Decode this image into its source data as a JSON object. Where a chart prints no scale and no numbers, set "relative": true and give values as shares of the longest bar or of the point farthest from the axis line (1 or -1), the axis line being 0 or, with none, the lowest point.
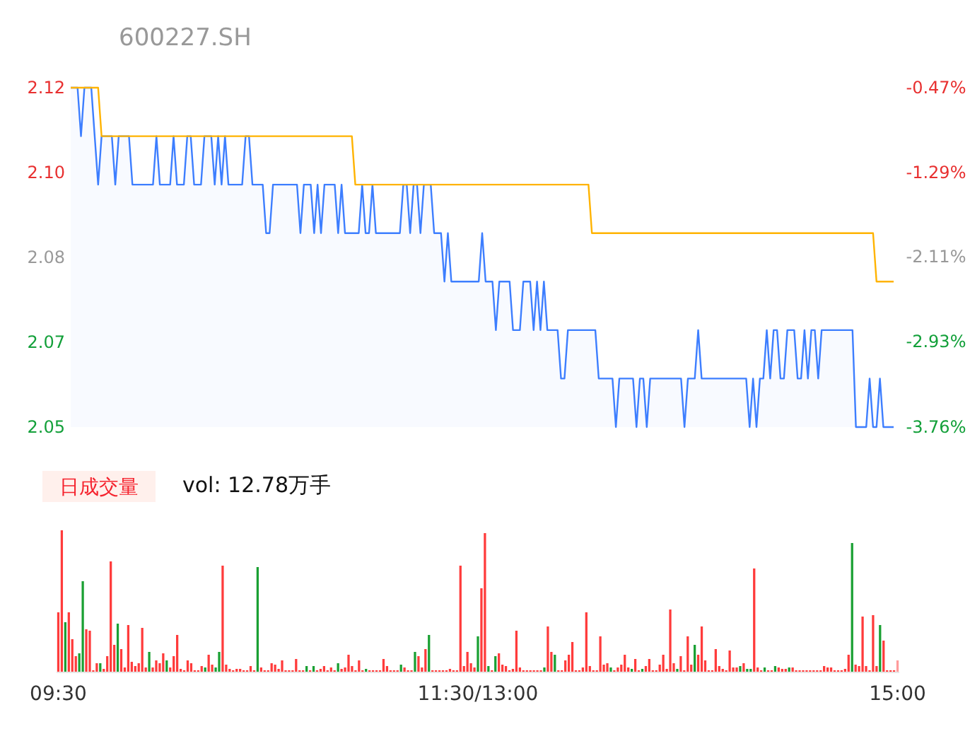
{
  "chart_data": [
    {
      "type": "line",
      "title": "600227.SH",
      "categories": [
        null,
        null,
        null,
        null,
        null,
        null,
        null,
        null,
        null,
        null,
        null,
        null,
        null,
        null,
        null,
        null,
        null,
        null,
        null,
        null,
        null,
        null,
        null,
        null,
        null,
        null,
        null,
        null,
        null,
        null,
        null,
        null,
        null,
        null,
        null,
        null,
        null,
        null,
        null,
        null,
        null,
        null,
        null,
        null,
        null,
        null,
        null,
        null,
        null,
        null,
        null,
        null,
        null,
        null,
        null,
        null,
        null,
        null,
        null,
        null,
        null,
        null,
        null,
        null,
        null,
        null,
        null,
        null,
        null,
        null,
        null,
        null,
        null,
        null,
        null,
        null,
        null,
        null,
        null,
        null,
        null,
        null,
        null,
        null,
        null,
        null,
        null,
        null,
        null,
        null,
        null,
        null,
        null,
        null,
        null,
        null,
        null,
        null,
        null,
        null,
        null,
        null,
        null,
        null,
        null,
        null,
        null,
        null,
        null,
        null,
        null,
        null,
        null,
        null,
        null,
        null,
        null,
        null,
        null,
        null,
        null,
        null,
        null,
        null,
        null,
        null,
        null,
        null,
        null,
        null,
        null,
        null,
        null,
        null,
        null,
        null,
        null,
        null,
        null,
        null,
        null,
        null,
        null,
        null,
        null,
        null,
        null,
        null,
        null,
        null,
        null,
        null,
        null,
        null,
        null,
        null,
        null,
        null,
        null,
        null,
        null,
        null,
        null,
        null,
        null,
        null,
        null,
        null,
        null,
        null,
        null,
        null,
        null,
        null,
        null,
        null,
        null,
        null,
        null,
        null,
        null,
        null,
        null,
        null,
        null,
        null,
        null,
        null,
        null,
        null,
        null,
        null,
        null,
        null,
        null,
        null,
        null,
        null,
        null,
        null,
        null,
        null,
        null,
        null,
        null,
        null,
        null,
        null,
        null,
        null,
        null,
        null,
        null,
        null,
        null,
        null,
        null,
        null,
        null,
        null,
        null,
        null,
        null,
        null,
        null,
        null,
        null,
        null,
        null,
        null,
        null,
        null,
        null,
        null,
        null,
        null,
        null,
        null,
        null,
        null,
        null
      ],
      "ylim": [
        2.05,
        2.12
      ],
      "yticks": [
        {
          "value": 2.05,
          "label": "2.05"
        },
        {
          "value": 2.0675,
          "label": "2.07"
        },
        {
          "value": 2.085,
          "label": "2.08"
        },
        {
          "value": 2.1025,
          "label": "2.10"
        },
        {
          "value": 2.12,
          "label": "2.12"
        }
      ],
      "y2lim": [
        -3.76,
        -0.47
      ],
      "y2ticks": [
        {
          "value": -3.76,
          "label": "-3.76%"
        },
        {
          "value": -2.93,
          "label": "-2.93%"
        },
        {
          "value": -2.11,
          "label": "-2.11%"
        },
        {
          "value": -1.29,
          "label": "-1.29%"
        },
        {
          "value": -0.47,
          "label": "-0.47%"
        }
      ],
      "tick_labels": "y",
      "series": [
        {
          "type": "area",
          "color": "#3d7eff",
          "values": [
            2.12,
            2.12,
            2.12,
            2.11,
            2.12,
            2.12,
            2.12,
            2.11,
            2.1,
            2.11,
            2.11,
            2.11,
            2.11,
            2.1,
            2.11,
            2.11,
            2.11,
            2.11,
            2.1,
            2.1,
            2.1,
            2.1,
            2.1,
            2.1,
            2.1,
            2.11,
            2.1,
            2.1,
            2.1,
            2.1,
            2.11,
            2.1,
            2.1,
            2.1,
            2.11,
            2.11,
            2.1,
            2.1,
            2.1,
            2.11,
            2.11,
            2.11,
            2.1,
            2.11,
            2.1,
            2.11,
            2.1,
            2.1,
            2.1,
            2.1,
            2.1,
            2.11,
            2.11,
            2.1,
            2.1,
            2.1,
            2.1,
            2.09,
            2.09,
            2.1,
            2.1,
            2.1,
            2.1,
            2.1,
            2.1,
            2.1,
            2.1,
            2.09,
            2.1,
            2.1,
            2.1,
            2.09,
            2.1,
            2.09,
            2.1,
            2.1,
            2.1,
            2.1,
            2.09,
            2.1,
            2.09,
            2.09,
            2.09,
            2.09,
            2.09,
            2.1,
            2.09,
            2.09,
            2.1,
            2.09,
            2.09,
            2.09,
            2.09,
            2.09,
            2.09,
            2.09,
            2.09,
            2.1,
            2.1,
            2.09,
            2.1,
            2.1,
            2.09,
            2.1,
            2.1,
            2.1,
            2.09,
            2.09,
            2.09,
            2.08,
            2.09,
            2.08,
            2.08,
            2.08,
            2.08,
            2.08,
            2.08,
            2.08,
            2.08,
            2.08,
            2.09,
            2.08,
            2.08,
            2.08,
            2.07,
            2.08,
            2.08,
            2.08,
            2.08,
            2.07,
            2.07,
            2.07,
            2.08,
            2.08,
            2.08,
            2.07,
            2.08,
            2.07,
            2.08,
            2.07,
            2.07,
            2.07,
            2.07,
            2.06,
            2.06,
            2.07,
            2.07,
            2.07,
            2.07,
            2.07,
            2.07,
            2.07,
            2.07,
            2.07,
            2.06,
            2.06,
            2.06,
            2.06,
            2.06,
            2.05,
            2.06,
            2.06,
            2.06,
            2.06,
            2.06,
            2.05,
            2.06,
            2.06,
            2.05,
            2.06,
            2.06,
            2.06,
            2.06,
            2.06,
            2.06,
            2.06,
            2.06,
            2.06,
            2.06,
            2.05,
            2.06,
            2.06,
            2.06,
            2.07,
            2.06,
            2.06,
            2.06,
            2.06,
            2.06,
            2.06,
            2.06,
            2.06,
            2.06,
            2.06,
            2.06,
            2.06,
            2.06,
            2.06,
            2.05,
            2.06,
            2.05,
            2.06,
            2.06,
            2.07,
            2.06,
            2.07,
            2.07,
            2.06,
            2.06,
            2.07,
            2.07,
            2.07,
            2.06,
            2.06,
            2.07,
            2.06,
            2.07,
            2.07,
            2.06,
            2.07,
            2.07,
            2.07,
            2.07,
            2.07,
            2.07,
            2.07,
            2.07,
            2.07,
            2.07,
            2.05,
            2.05,
            2.05,
            2.05,
            2.06,
            2.05,
            2.05,
            2.06,
            2.05,
            2.05,
            2.05,
            2.05
          ]
        },
        {
          "type": "line",
          "color": "#ffb300",
          "values": [
            2.12,
            2.12,
            2.12,
            2.12,
            2.12,
            2.12,
            2.12,
            2.12,
            2.12,
            2.11,
            2.11,
            2.11,
            2.11,
            2.11,
            2.11,
            2.11,
            2.11,
            2.11,
            2.11,
            2.11,
            2.11,
            2.11,
            2.11,
            2.11,
            2.11,
            2.11,
            2.11,
            2.11,
            2.11,
            2.11,
            2.11,
            2.11,
            2.11,
            2.11,
            2.11,
            2.11,
            2.11,
            2.11,
            2.11,
            2.11,
            2.11,
            2.11,
            2.11,
            2.11,
            2.11,
            2.11,
            2.11,
            2.11,
            2.11,
            2.11,
            2.11,
            2.11,
            2.11,
            2.11,
            2.11,
            2.11,
            2.11,
            2.11,
            2.11,
            2.11,
            2.11,
            2.11,
            2.11,
            2.11,
            2.11,
            2.11,
            2.11,
            2.11,
            2.11,
            2.11,
            2.11,
            2.11,
            2.11,
            2.11,
            2.11,
            2.11,
            2.11,
            2.11,
            2.11,
            2.11,
            2.11,
            2.11,
            2.11,
            2.1,
            2.1,
            2.1,
            2.1,
            2.1,
            2.1,
            2.1,
            2.1,
            2.1,
            2.1,
            2.1,
            2.1,
            2.1,
            2.1,
            2.1,
            2.1,
            2.1,
            2.1,
            2.1,
            2.1,
            2.1,
            2.1,
            2.1,
            2.1,
            2.1,
            2.1,
            2.1,
            2.1,
            2.1,
            2.1,
            2.1,
            2.1,
            2.1,
            2.1,
            2.1,
            2.1,
            2.1,
            2.1,
            2.1,
            2.1,
            2.1,
            2.1,
            2.1,
            2.1,
            2.1,
            2.1,
            2.1,
            2.1,
            2.1,
            2.1,
            2.1,
            2.1,
            2.1,
            2.1,
            2.1,
            2.1,
            2.1,
            2.1,
            2.1,
            2.1,
            2.1,
            2.1,
            2.1,
            2.1,
            2.1,
            2.1,
            2.1,
            2.1,
            2.1,
            2.09,
            2.09,
            2.09,
            2.09,
            2.09,
            2.09,
            2.09,
            2.09,
            2.09,
            2.09,
            2.09,
            2.09,
            2.09,
            2.09,
            2.09,
            2.09,
            2.09,
            2.09,
            2.09,
            2.09,
            2.09,
            2.09,
            2.09,
            2.09,
            2.09,
            2.09,
            2.09,
            2.09,
            2.09,
            2.09,
            2.09,
            2.09,
            2.09,
            2.09,
            2.09,
            2.09,
            2.09,
            2.09,
            2.09,
            2.09,
            2.09,
            2.09,
            2.09,
            2.09,
            2.09,
            2.09,
            2.09,
            2.09,
            2.09,
            2.09,
            2.09,
            2.09,
            2.09,
            2.09,
            2.09,
            2.09,
            2.09,
            2.09,
            2.09,
            2.09,
            2.09,
            2.09,
            2.09,
            2.09,
            2.09,
            2.09,
            2.09,
            2.09,
            2.09,
            2.09,
            2.09,
            2.09,
            2.09,
            2.09,
            2.09,
            2.09,
            2.09,
            2.09,
            2.09,
            2.09,
            2.09,
            2.09,
            2.09,
            2.08,
            2.08,
            2.08,
            2.08,
            2.08,
            2.08
          ]
        }
      ]
    },
    {
      "type": "bar",
      "relative": true,
      "title": "日成交量",
      "subtitle": "vol: 12.78万手",
      "categories": [
        "09:30",
        null,
        null,
        null,
        null,
        null,
        null,
        null,
        null,
        null,
        null,
        null,
        null,
        null,
        null,
        null,
        null,
        null,
        null,
        null,
        null,
        null,
        null,
        null,
        null,
        null,
        null,
        null,
        null,
        null,
        null,
        null,
        null,
        null,
        null,
        null,
        null,
        null,
        null,
        null,
        null,
        null,
        null,
        null,
        null,
        null,
        null,
        null,
        null,
        null,
        null,
        null,
        null,
        null,
        null,
        null,
        null,
        null,
        null,
        null,
        null,
        null,
        null,
        null,
        null,
        null,
        null,
        null,
        null,
        null,
        null,
        null,
        null,
        null,
        null,
        null,
        null,
        null,
        null,
        null,
        null,
        null,
        null,
        null,
        null,
        null,
        null,
        null,
        null,
        null,
        null,
        null,
        null,
        null,
        null,
        null,
        null,
        null,
        null,
        null,
        null,
        null,
        null,
        null,
        null,
        null,
        null,
        null,
        null,
        null,
        null,
        null,
        null,
        null,
        null,
        null,
        null,
        null,
        null,
        null,
        "11:30/13:00",
        null,
        null,
        null,
        null,
        null,
        null,
        null,
        null,
        null,
        null,
        null,
        null,
        null,
        null,
        null,
        null,
        null,
        null,
        null,
        null,
        null,
        null,
        null,
        null,
        null,
        null,
        null,
        null,
        null,
        null,
        null,
        null,
        null,
        null,
        null,
        null,
        null,
        null,
        null,
        null,
        null,
        null,
        null,
        null,
        null,
        null,
        null,
        null,
        null,
        null,
        null,
        null,
        null,
        null,
        null,
        null,
        null,
        null,
        null,
        null,
        null,
        null,
        null,
        null,
        null,
        null,
        null,
        null,
        null,
        null,
        null,
        null,
        null,
        null,
        null,
        null,
        null,
        null,
        null,
        null,
        null,
        null,
        null,
        null,
        null,
        null,
        null,
        null,
        null,
        null,
        null,
        null,
        null,
        null,
        null,
        null,
        null,
        null,
        null,
        null,
        null,
        null,
        null,
        null,
        null,
        null,
        null,
        null,
        null,
        null,
        null,
        null,
        null,
        null,
        null,
        null,
        null,
        null,
        null,
        "15:00"
      ],
      "values": [
        0.42,
        1,
        0.35,
        0.42,
        0.23,
        0.11,
        0.13,
        0.64,
        0.3,
        0.29,
        0.01,
        0.06,
        0.06,
        0.02,
        0.11,
        0.78,
        0.19,
        0.34,
        0.16,
        0.03,
        0.33,
        0.07,
        0.04,
        0.06,
        0.31,
        0.03,
        0.14,
        0.03,
        0.08,
        0.06,
        0.13,
        0.08,
        0.03,
        0.11,
        0.26,
        0.02,
        0.01,
        0.08,
        0.06,
        0.01,
        0.01,
        0.04,
        0.03,
        0.12,
        0.05,
        0.03,
        0.14,
        0.75,
        0.05,
        0.02,
        0.01,
        0.02,
        0.02,
        0.01,
        0.01,
        0.04,
        0.01,
        0.74,
        0.03,
        0.01,
        0.01,
        0.06,
        0.05,
        0.02,
        0.08,
        0.01,
        0.01,
        0.01,
        0.09,
        0.01,
        0.01,
        0.04,
        0.01,
        0.04,
        0.01,
        0.02,
        0.04,
        0.01,
        0.03,
        0.01,
        0.06,
        0.02,
        0.03,
        0.12,
        0.04,
        0.01,
        0.08,
        0.01,
        0.02,
        0.01,
        0.01,
        0.01,
        0.01,
        0.09,
        0.04,
        0.01,
        0.01,
        0.01,
        0.05,
        0.03,
        0.01,
        0.01,
        0.14,
        0.11,
        0.03,
        0.16,
        0.26,
        0.01,
        0.01,
        0.01,
        0.01,
        0.01,
        0.02,
        0.01,
        0.01,
        0.75,
        0.04,
        0.14,
        0.06,
        0.03,
        0.25,
        0.59,
        0.98,
        0.04,
        0.01,
        0.11,
        0.13,
        0.05,
        0.04,
        0.01,
        0.02,
        0.29,
        0.03,
        0.01,
        0.01,
        0.01,
        0.01,
        0.01,
        0.01,
        0.03,
        0.32,
        0.14,
        0.12,
        0.01,
        0.01,
        0.08,
        0.12,
        0.21,
        0.01,
        0.01,
        0.03,
        0.42,
        0.04,
        0.01,
        0.01,
        0.25,
        0.05,
        0.06,
        0.03,
        0.01,
        0.03,
        0.05,
        0.12,
        0.03,
        0.02,
        0.09,
        0.01,
        0.02,
        0.04,
        0.09,
        0.01,
        0.01,
        0.05,
        0.12,
        0.02,
        0.44,
        0.06,
        0.02,
        0.11,
        0.01,
        0.25,
        0.05,
        0.19,
        0.12,
        0.32,
        0.08,
        0.01,
        0.01,
        0.16,
        0.04,
        0.02,
        0.01,
        0.15,
        0.03,
        0.03,
        0.04,
        0.06,
        0.02,
        0.02,
        0.73,
        0.03,
        0.01,
        0.03,
        0.01,
        0.01,
        0.04,
        0.03,
        0.02,
        0.02,
        0.03,
        0.03,
        0.01,
        0.01,
        0.01,
        0.01,
        0.01,
        0.01,
        0.01,
        0.01,
        0.04,
        0.03,
        0.03,
        0.01,
        0.01,
        0.01,
        0.02,
        0.12,
        0.91,
        0.05,
        0.04,
        0.39,
        0.04,
        0.01,
        0.4,
        0.04,
        0.33,
        0.22,
        0.01,
        0.01,
        0.01,
        0.08
      ],
      "colors": [
        "#ff3b3b",
        "#ff3b3b",
        "#1aa033",
        "#ff3b3b",
        "#ff3b3b",
        "#ff3b3b",
        "#1aa033",
        "#1aa033",
        "#ff3b3b",
        "#ff3b3b",
        "#ff3b3b",
        "#ff3b3b",
        "#1aa033",
        "#ff3b3b",
        "#ff3b3b",
        "#ff3b3b",
        "#ff3b3b",
        "#1aa033",
        "#ff3b3b",
        "#ff3b3b",
        "#ff3b3b",
        "#ff3b3b",
        "#ff3b3b",
        "#ff3b3b",
        "#ff3b3b",
        "#ff3b3b",
        "#1aa033",
        "#ff3b3b",
        "#ff3b3b",
        "#ff3b3b",
        "#ff3b3b",
        "#1aa033",
        "#ff3b3b",
        "#ff3b3b",
        "#ff3b3b",
        "#ff3b3b",
        "#ff3b3b",
        "#ff3b3b",
        "#ff3b3b",
        "#ff3b3b",
        "#ff3b3b",
        "#ff3b3b",
        "#1aa033",
        "#ff3b3b",
        "#ff3b3b",
        "#1aa033",
        "#1aa033",
        "#ff3b3b",
        "#ff3b3b",
        "#ff3b3b",
        "#ff3b3b",
        "#ff3b3b",
        "#ff3b3b",
        "#ff3b3b",
        "#ff3b3b",
        "#ff3b3b",
        "#ff3b3b",
        "#1aa033",
        "#ff3b3b",
        "#ff3b3b",
        "#ff3b3b",
        "#ff3b3b",
        "#ff3b3b",
        "#ff3b3b",
        "#ff3b3b",
        "#ff3b3b",
        "#ff3b3b",
        "#ff3b3b",
        "#ff3b3b",
        "#ff3b3b",
        "#ff3b3b",
        "#1aa033",
        "#ff3b3b",
        "#1aa033",
        "#ff3b3b",
        "#ff3b3b",
        "#ff3b3b",
        "#ff3b3b",
        "#ff3b3b",
        "#ff3b3b",
        "#1aa033",
        "#ff3b3b",
        "#ff3b3b",
        "#ff3b3b",
        "#ff3b3b",
        "#ff3b3b",
        "#ff3b3b",
        "#ff3b3b",
        "#1aa033",
        "#ff3b3b",
        "#ff3b3b",
        "#ff3b3b",
        "#ff3b3b",
        "#ff3b3b",
        "#ff3b3b",
        "#ff3b3b",
        "#ff3b3b",
        "#ff3b3b",
        "#1aa033",
        "#ff3b3b",
        "#ff3b3b",
        "#ff3b3b",
        "#1aa033",
        "#ff3b3b",
        "#ff3b3b",
        "#ff3b3b",
        "#1aa033",
        "#ff3b3b",
        "#ff3b3b",
        "#ff3b3b",
        "#ff3b3b",
        "#ff3b3b",
        "#ff3b3b",
        "#ff3b3b",
        "#ff3b3b",
        "#ff3b3b",
        "#ff3b3b",
        "#ff3b3b",
        "#ff3b3b",
        "#ff3b3b",
        "#1aa033",
        "#ff3b3b",
        "#ff3b3b",
        "#1aa033",
        "#ff3b3b",
        "#1aa033",
        "#ff3b3b",
        "#ff3b3b",
        "#ff3b3b",
        "#ff3b3b",
        "#ff3b3b",
        "#ff3b3b",
        "#ff3b3b",
        "#ff3b3b",
        "#ff3b3b",
        "#ff3b3b",
        "#ff3b3b",
        "#ff3b3b",
        "#ff3b3b",
        "#1aa033",
        "#ff3b3b",
        "#ff3b3b",
        "#1aa033",
        "#ff3b3b",
        "#ff3b3b",
        "#ff3b3b",
        "#ff3b3b",
        "#ff3b3b",
        "#ff3b3b",
        "#ff3b3b",
        "#ff3b3b",
        "#ff3b3b",
        "#ff3b3b",
        "#ff3b3b",
        "#ff3b3b",
        "#ff3b3b",
        "#ff3b3b",
        "#ff3b3b",
        "#1aa033",
        "#ff3b3b",
        "#ff3b3b",
        "#ff3b3b",
        "#ff3b3b",
        "#ff3b3b",
        "#1aa033",
        "#ff3b3b",
        "#ff3b3b",
        "#1aa033",
        "#ff3b3b",
        "#ff3b3b",
        "#ff3b3b",
        "#ff3b3b",
        "#ff3b3b",
        "#ff3b3b",
        "#ff3b3b",
        "#ff3b3b",
        "#ff3b3b",
        "#1aa033",
        "#ff3b3b",
        "#ff3b3b",
        "#ff3b3b",
        "#ff3b3b",
        "#1aa033",
        "#ff3b3b",
        "#ff3b3b",
        "#ff3b3b",
        "#ff3b3b",
        "#ff3b3b",
        "#ff3b3b",
        "#ff3b3b",
        "#ff3b3b",
        "#ff3b3b",
        "#ff3b3b",
        "#ff3b3b",
        "#ff3b3b",
        "#1aa033",
        "#ff3b3b",
        "#1aa033",
        "#1aa033",
        "#ff3b3b",
        "#ff3b3b",
        "#ff3b3b",
        "#1aa033",
        "#ff3b3b",
        "#ff3b3b",
        "#1aa033",
        "#ff3b3b",
        "#ff3b3b",
        "#ff3b3b",
        "#1aa033",
        "#ff3b3b",
        "#ff3b3b",
        "#ff3b3b",
        "#ff3b3b",
        "#ff3b3b",
        "#ff3b3b",
        "#ff3b3b",
        "#ff3b3b",
        "#ff3b3b",
        "#ff3b3b",
        "#ff3b3b",
        "#ff3b3b",
        "#ff3b3b",
        "#ff3b3b",
        "#ff3b3b",
        "#ff3b3b",
        "#ff3b3b",
        "#1aa033",
        "#ff3b3b",
        "#ff3b3b",
        "#ff3b3b",
        "#ff3b3b",
        "#ff3b3b",
        "#ff3b3b",
        "#ff3b3b",
        "#1aa033",
        "#ff3b3b",
        "#ff3b3b",
        "#ff3b3b",
        "#ff3b3b",
        "#ff9c9c"
      ]
    }
  ]
}
